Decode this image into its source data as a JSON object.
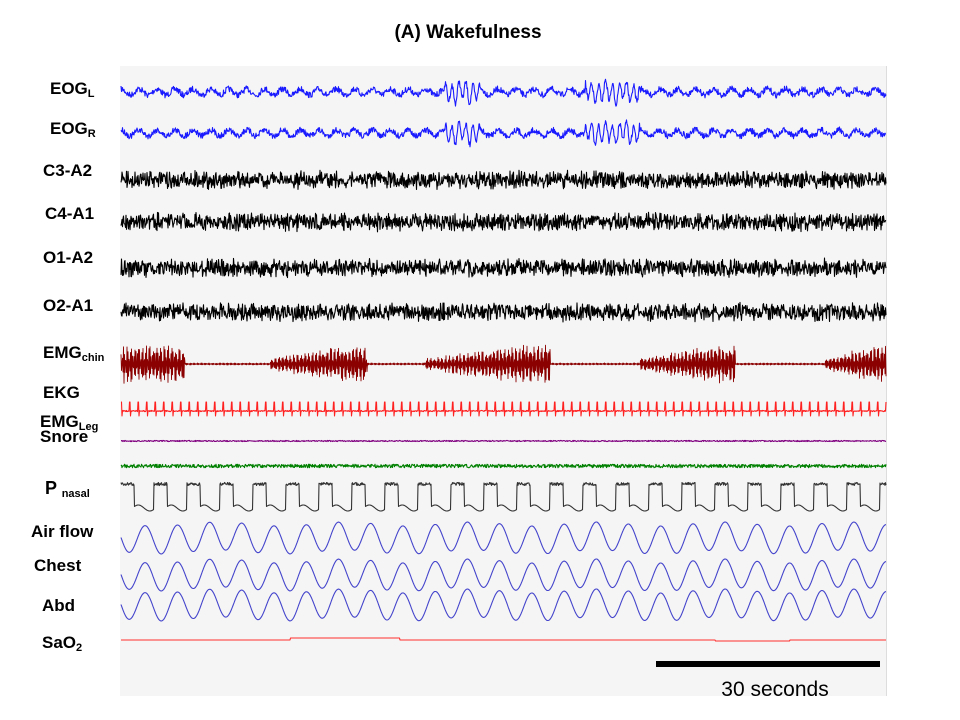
{
  "title": "(A) Wakefulness",
  "channels": [
    {
      "id": "eog-l",
      "main": "EOG",
      "sub": "L",
      "color": "#1a1aff",
      "kind": "eog"
    },
    {
      "id": "eog-r",
      "main": "EOG",
      "sub": "R",
      "color": "#1a1aff",
      "kind": "eog"
    },
    {
      "id": "c3-a2",
      "main": "C3-A2",
      "sub": "",
      "color": "#000000",
      "kind": "eeg"
    },
    {
      "id": "c4-a1",
      "main": "C4-A1",
      "sub": "",
      "color": "#000000",
      "kind": "eeg"
    },
    {
      "id": "o1-a2",
      "main": "O1-A2",
      "sub": "",
      "color": "#000000",
      "kind": "eeg"
    },
    {
      "id": "o2-a1",
      "main": "O2-A1",
      "sub": "",
      "color": "#000000",
      "kind": "eeg"
    },
    {
      "id": "emg-chin",
      "main": "EMG",
      "sub": "chin",
      "color": "#8b0000",
      "kind": "emg"
    },
    {
      "id": "ekg",
      "main": "EKG",
      "sub": "",
      "color": "#ff2020",
      "kind": "ekg"
    },
    {
      "id": "emg-leg",
      "main": "EMG",
      "sub": "Leg",
      "color": "#800080",
      "kind": "flat"
    },
    {
      "id": "snore",
      "main": "Snore",
      "sub": "",
      "color": "#008000",
      "kind": "snore"
    },
    {
      "id": "p-nasal",
      "main": "P ",
      "sub": "nasal",
      "color": "#333333",
      "kind": "pnasal"
    },
    {
      "id": "air-flow",
      "main": "Air flow",
      "sub": "",
      "color": "#4444cc",
      "kind": "resp"
    },
    {
      "id": "chest",
      "main": "Chest",
      "sub": "",
      "color": "#4444cc",
      "kind": "resp"
    },
    {
      "id": "abd",
      "main": "Abd",
      "sub": "",
      "color": "#4444cc",
      "kind": "resp"
    },
    {
      "id": "sao2",
      "main": "SaO",
      "sub": "2",
      "color": "#ff3030",
      "kind": "sao2"
    }
  ],
  "scale_bar": {
    "label": "30 seconds"
  }
}
